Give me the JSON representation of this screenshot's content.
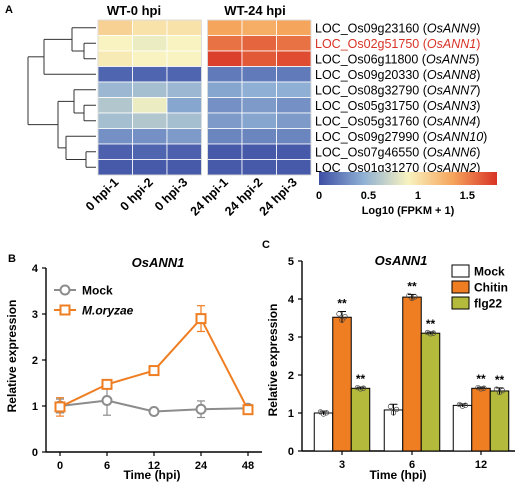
{
  "colors": {
    "scale": [
      "#3d4fa4",
      "#8fb0d4",
      "#f8f3c0",
      "#f6a55c",
      "#d83326"
    ],
    "highlight_gene": "#d83326",
    "mock": "#8c8c8c",
    "m_oryzae": "#ef7d22",
    "chitin": "#ef7d22",
    "flg22": "#b3ba3c",
    "mock_bar": "#ffffff"
  },
  "chart_data": [
    {
      "panel": "A",
      "type": "heatmap",
      "group_headers": [
        "WT-0 hpi",
        "WT-24 hpi"
      ],
      "columns": [
        "0 hpi-1",
        "0 hpi-2",
        "0 hpi-3",
        "24 hpi-1",
        "24 hpi-2",
        "24 hpi-3"
      ],
      "rows": [
        {
          "locus": "LOC_Os09g23160",
          "gene": "OsANN9",
          "highlight": false
        },
        {
          "locus": "LOC_Os02g51750",
          "gene": "OsANN1",
          "highlight": true
        },
        {
          "locus": "LOC_Os06g11800",
          "gene": "OsANN5",
          "highlight": false
        },
        {
          "locus": "LOC_Os09g20330",
          "gene": "OsANN8",
          "highlight": false
        },
        {
          "locus": "LOC_Os08g32790",
          "gene": "OsANN7",
          "highlight": false
        },
        {
          "locus": "LOC_Os05g31750",
          "gene": "OsANN3",
          "highlight": false
        },
        {
          "locus": "LOC_Os05g31760",
          "gene": "OsANN4",
          "highlight": false
        },
        {
          "locus": "LOC_Os09g27990",
          "gene": "OsANN10",
          "highlight": false
        },
        {
          "locus": "LOC_Os07g46550",
          "gene": "OsANN6",
          "highlight": false
        },
        {
          "locus": "LOC_Os01g31270",
          "gene": "OsANN2",
          "highlight": false
        }
      ],
      "values": [
        [
          1.1,
          1.0,
          1.0,
          1.35,
          1.3,
          1.35
        ],
        [
          0.9,
          0.85,
          0.9,
          1.55,
          1.6,
          1.55
        ],
        [
          0.95,
          0.9,
          0.9,
          1.75,
          1.65,
          1.7
        ],
        [
          0.1,
          0.1,
          0.1,
          0.2,
          0.2,
          0.2
        ],
        [
          0.5,
          0.55,
          0.5,
          0.4,
          0.45,
          0.45
        ],
        [
          0.6,
          0.85,
          0.4,
          0.3,
          0.35,
          0.3
        ],
        [
          0.55,
          0.6,
          0.55,
          0.35,
          0.4,
          0.35
        ],
        [
          0.3,
          0.3,
          0.35,
          0.25,
          0.25,
          0.25
        ],
        [
          0.08,
          0.1,
          0.08,
          0.05,
          0.05,
          0.05
        ],
        [
          0.05,
          0.05,
          0.05,
          0.05,
          0.05,
          0.05
        ]
      ],
      "colorbar": {
        "ticks": [
          "0",
          "0.5",
          "1",
          "1.5"
        ],
        "tick_values": [
          0,
          0.5,
          1,
          1.5
        ],
        "range": [
          0,
          1.8
        ],
        "label": "Log10 (FPKM + 1)"
      }
    },
    {
      "panel": "B",
      "type": "line",
      "title": "OsANN1",
      "xlabel": "Time (hpi)",
      "ylabel": "Relative expression",
      "categories": [
        "0",
        "6",
        "12",
        "24",
        "48"
      ],
      "yticks": [
        "0",
        "1",
        "2",
        "3",
        "4"
      ],
      "ylim": [
        0,
        4
      ],
      "series": [
        {
          "name": "Mock",
          "values": [
            1.0,
            1.12,
            0.88,
            0.93,
            0.95
          ],
          "errors": [
            0.15,
            0.32,
            0.04,
            0.18,
            0.08
          ]
        },
        {
          "name": "M.oryzae",
          "values": [
            0.98,
            1.47,
            1.77,
            2.9,
            0.92
          ],
          "errors": [
            0.2,
            0.07,
            0.06,
            0.28,
            0.05
          ]
        }
      ]
    },
    {
      "panel": "C",
      "type": "bar",
      "title": "OsANN1",
      "xlabel": "Time (hpi)",
      "ylabel": "Relative expression",
      "categories": [
        "3",
        "6",
        "12"
      ],
      "yticks": [
        "0",
        "1",
        "2",
        "3",
        "4",
        "5"
      ],
      "ylim": [
        0,
        5
      ],
      "series": [
        {
          "name": "Mock",
          "values": [
            1.0,
            1.08,
            1.2
          ],
          "errors": [
            0.05,
            0.15,
            0.04
          ]
        },
        {
          "name": "Chitin",
          "values": [
            3.52,
            4.05,
            1.65
          ],
          "errors": [
            0.15,
            0.07,
            0.03
          ]
        },
        {
          "name": "flg22",
          "values": [
            1.65,
            3.1,
            1.58
          ],
          "errors": [
            0.03,
            0.03,
            0.08
          ]
        }
      ],
      "significance": [
        [
          "",
          "**",
          "**"
        ],
        [
          "",
          "**",
          "**"
        ],
        [
          "",
          "**",
          "**"
        ]
      ]
    }
  ],
  "panel_letters": [
    "A",
    "B",
    "C"
  ]
}
